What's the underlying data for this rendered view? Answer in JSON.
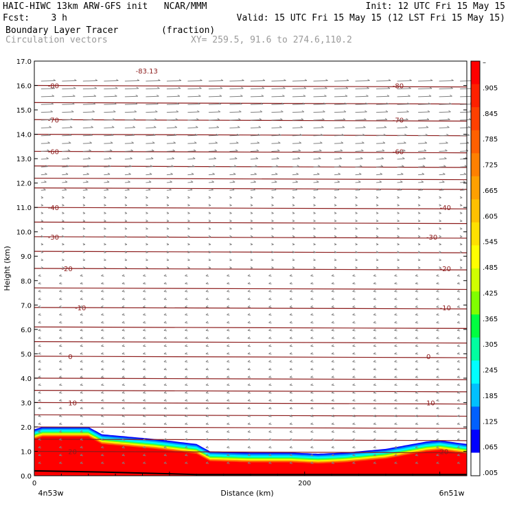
{
  "header": {
    "line1_left": "HAIC-HIWC 13km ARW-GFS init   NCAR/MMM",
    "line1_right": "Init: 12 UTC Fri 15 May 15",
    "line2_left": "Fcst:    3 h",
    "line2_right": "Valid: 15 UTC Fri 15 May 15 (12 LST Fri 15 May 15)",
    "line3_left": "Boundary Layer Tracer        (fraction)",
    "line4_left": "Circulation vectors",
    "line4_right": "XY= 259.5, 91.6 to 274.6,110.2"
  },
  "colors": {
    "contour": "#8b1a1a",
    "vector": "#808080"
  },
  "chart_data": {
    "type": "heatmap",
    "xlabel": "Distance (km)",
    "ylabel": "Height (km)",
    "xlim": [
      0,
      320
    ],
    "ylim": [
      0,
      17
    ],
    "x_ticks": [
      0,
      200
    ],
    "y_ticks": [
      "0.0",
      "1.0",
      "2.0",
      "3.0",
      "4.0",
      "5.0",
      "6.0",
      "7.0",
      "8.0",
      "9.0",
      "10.0",
      "11.0",
      "12.0",
      "13.0",
      "14.0",
      "15.0",
      "16.0",
      "17.0"
    ],
    "x_endpoint_labels": [
      "4n53w",
      "6n51w"
    ],
    "colorbar": {
      "labels": [
        "–",
        ".905",
        ".845",
        ".785",
        ".725",
        ".665",
        ".605",
        ".545",
        ".485",
        ".425",
        ".365",
        ".305",
        ".245",
        ".185",
        ".125",
        ".065",
        ".005"
      ],
      "colors": [
        "#ff0000",
        "#ff2000",
        "#ff4000",
        "#ff6000",
        "#ff8000",
        "#ffa000",
        "#ffc000",
        "#ffe000",
        "#ffff00",
        "#d0ff00",
        "#80ff00",
        "#00ff40",
        "#00ffa0",
        "#00ffff",
        "#00c0ff",
        "#0060ff",
        "#0000ff",
        "#ffffff"
      ]
    },
    "tracer_top_km": [
      [
        0,
        1.9
      ],
      [
        6,
        2.0
      ],
      [
        40,
        2.0
      ],
      [
        50,
        1.7
      ],
      [
        90,
        1.5
      ],
      [
        120,
        1.3
      ],
      [
        130,
        1.0
      ],
      [
        160,
        0.95
      ],
      [
        190,
        0.95
      ],
      [
        210,
        0.9
      ],
      [
        230,
        0.95
      ],
      [
        260,
        1.1
      ],
      [
        290,
        1.4
      ],
      [
        300,
        1.45
      ],
      [
        320,
        1.3
      ]
    ],
    "contours": [
      {
        "level": "-80",
        "y_km": 16.0,
        "labels_x": [
          10,
          265
        ]
      },
      {
        "level": "-70",
        "y_km": 14.6,
        "labels_x": [
          10,
          265
        ]
      },
      {
        "level": "-60",
        "y_km": 13.3,
        "labels_x": [
          10,
          265
        ]
      },
      {
        "level": "-40",
        "y_km": 11.0,
        "labels_x": [
          10,
          300
        ]
      },
      {
        "level": "-30",
        "y_km": 9.8,
        "labels_x": [
          10,
          290
        ]
      },
      {
        "level": "-20",
        "y_km": 8.5,
        "labels_x": [
          20,
          300
        ]
      },
      {
        "level": "-10",
        "y_km": 6.9,
        "labels_x": [
          30,
          300
        ]
      },
      {
        "level": "0",
        "y_km": 4.9,
        "labels_x": [
          25,
          290
        ]
      },
      {
        "level": "10",
        "y_km": 3.0,
        "labels_x": [
          25,
          290
        ]
      },
      {
        "level": "20",
        "y_km": 1.0,
        "labels_x": [
          25,
          300
        ]
      }
    ],
    "min_label": {
      "text": "-83.13",
      "x_km": 75,
      "y_km": 16.6
    },
    "extra_levels_km": [
      15.3,
      14.0,
      12.7,
      12.2,
      11.8,
      10.4,
      9.2,
      7.7,
      6.1,
      5.5,
      4.0,
      3.5,
      2.5,
      2.0,
      1.5
    ]
  }
}
